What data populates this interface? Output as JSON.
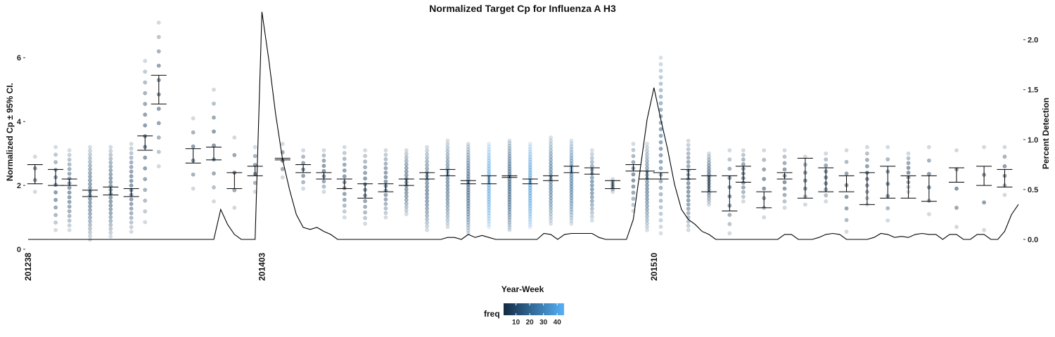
{
  "chart_data": {
    "type": "scatter",
    "title": "Normalized Target Cp for Influenza A H3",
    "xlabel": "Year-Week",
    "ylabel": "Normalized Cp ± 95% CI.",
    "ylabel_right": "Percent Detection",
    "x_tick_labels": [
      "201238",
      "201403",
      "201510"
    ],
    "y_ticks": [
      0,
      2,
      4,
      6
    ],
    "ylim": [
      0,
      7.5
    ],
    "y2_ticks": [
      0.0,
      0.5,
      1.0,
      1.5,
      2.0
    ],
    "y2_tick_labels": [
      "0.0",
      "0.5",
      "1.0",
      "1.5",
      "2.0"
    ],
    "y2lim": [
      0,
      2.3
    ],
    "n_weeks": 145,
    "x_tick_weeks": [
      0,
      34,
      91
    ],
    "grid": false,
    "legend": {
      "title": "freq",
      "placement": "bottom",
      "ticks": [
        10,
        20,
        30,
        40
      ],
      "range": [
        1,
        45
      ],
      "colors": [
        "#132B43",
        "#56B1F7"
      ]
    },
    "series": [
      {
        "type": "errorbar",
        "weeks": [
          1,
          4,
          6,
          9,
          12,
          15,
          17,
          19,
          24,
          27,
          30,
          33,
          37,
          40,
          43,
          46,
          49,
          52,
          55,
          58,
          61,
          64,
          67,
          70,
          73,
          76,
          79,
          82,
          85,
          88,
          90,
          92,
          96,
          99,
          102,
          104,
          107,
          110,
          113,
          116,
          119,
          122,
          125,
          128,
          131,
          135,
          139,
          142
        ],
        "low": [
          2.05,
          2.0,
          2.0,
          1.65,
          1.7,
          1.65,
          3.1,
          4.55,
          2.7,
          2.8,
          1.9,
          2.3,
          2.8,
          2.4,
          2.2,
          1.9,
          1.6,
          1.8,
          2.0,
          2.2,
          2.3,
          2.05,
          2.05,
          2.25,
          2.05,
          2.15,
          2.4,
          2.35,
          1.9,
          2.45,
          2.2,
          2.2,
          2.2,
          1.8,
          1.2,
          2.1,
          1.3,
          2.2,
          1.6,
          1.8,
          1.8,
          1.4,
          1.6,
          1.6,
          1.5,
          2.1,
          2.0,
          1.95
        ],
        "high": [
          2.65,
          2.5,
          2.2,
          1.85,
          1.95,
          1.9,
          3.55,
          5.45,
          3.15,
          3.2,
          2.4,
          2.6,
          2.85,
          2.65,
          2.4,
          2.2,
          2.05,
          2.05,
          2.2,
          2.4,
          2.5,
          2.15,
          2.3,
          2.3,
          2.2,
          2.3,
          2.6,
          2.55,
          2.15,
          2.65,
          2.45,
          2.4,
          2.5,
          2.3,
          2.3,
          2.6,
          1.8,
          2.4,
          2.85,
          2.55,
          2.3,
          2.4,
          2.6,
          2.3,
          2.3,
          2.55,
          2.6,
          2.5
        ]
      },
      {
        "type": "points",
        "weeks": [
          1,
          4,
          6,
          9,
          12,
          15,
          17,
          19,
          24,
          27,
          30,
          33,
          37,
          40,
          43,
          46,
          49,
          52,
          55,
          58,
          61,
          64,
          67,
          70,
          73,
          76,
          79,
          82,
          85,
          88,
          90,
          92,
          96,
          99,
          102,
          104,
          107,
          110,
          113,
          116,
          119,
          122,
          125,
          128,
          131,
          135,
          139,
          142
        ],
        "min": [
          1.8,
          0.6,
          0.6,
          0.3,
          0.4,
          0.55,
          0.85,
          2.6,
          1.9,
          1.5,
          1.3,
          1.8,
          2.25,
          1.9,
          1.8,
          1.0,
          0.8,
          1.0,
          1.1,
          0.6,
          0.7,
          0.5,
          0.7,
          0.6,
          0.7,
          0.8,
          0.8,
          0.9,
          1.8,
          1.2,
          0.6,
          0.5,
          0.6,
          1.4,
          0.5,
          1.5,
          1.0,
          1.3,
          1.4,
          1.5,
          0.55,
          1.4,
          0.9,
          1.8,
          1.1,
          0.7,
          0.6,
          1.7
        ],
        "max": [
          2.9,
          3.2,
          3.1,
          3.2,
          3.2,
          3.3,
          5.9,
          7.1,
          4.1,
          5.0,
          3.5,
          3.2,
          3.3,
          3.1,
          3.1,
          3.2,
          3.1,
          3.1,
          3.1,
          3.2,
          3.4,
          3.3,
          3.3,
          3.4,
          3.3,
          3.5,
          3.4,
          3.1,
          2.2,
          3.3,
          3.3,
          6.0,
          3.4,
          3.0,
          3.1,
          3.1,
          3.1,
          3.1,
          2.9,
          3.0,
          3.1,
          3.2,
          3.2,
          3.0,
          3.2,
          3.1,
          3.2,
          3.2
        ],
        "n": [
          4,
          12,
          18,
          26,
          24,
          20,
          16,
          11,
          6,
          9,
          5,
          6,
          5,
          7,
          9,
          13,
          14,
          16,
          19,
          24,
          26,
          34,
          31,
          36,
          33,
          28,
          30,
          19,
          6,
          12,
          26,
          28,
          22,
          18,
          10,
          12,
          8,
          10,
          7,
          9,
          8,
          10,
          7,
          9,
          6,
          5,
          4,
          6
        ],
        "freq": [
          6,
          8,
          10,
          12,
          8,
          8,
          6,
          6,
          6,
          6,
          4,
          8,
          7,
          6,
          6,
          8,
          7,
          8,
          9,
          11,
          14,
          14,
          40,
          14,
          38,
          18,
          22,
          15,
          12,
          8,
          14,
          17,
          8,
          9,
          8,
          6,
          6,
          6,
          5,
          6,
          5,
          6,
          5,
          6,
          5,
          4,
          5,
          6
        ]
      },
      {
        "type": "line",
        "axis": "right",
        "values": [
          0.0,
          0.0,
          0.0,
          0.0,
          0.0,
          0.0,
          0.0,
          0.0,
          0.0,
          0.0,
          0.0,
          0.0,
          0.0,
          0.0,
          0.0,
          0.0,
          0.0,
          0.0,
          0.0,
          0.0,
          0.0,
          0.0,
          0.0,
          0.0,
          0.0,
          0.0,
          0.0,
          0.0,
          0.3,
          0.15,
          0.05,
          0.0,
          0.0,
          0.0,
          2.28,
          1.8,
          1.25,
          0.8,
          0.5,
          0.25,
          0.12,
          0.1,
          0.12,
          0.08,
          0.05,
          0.0,
          0.0,
          0.0,
          0.0,
          0.0,
          0.0,
          0.0,
          0.0,
          0.0,
          0.0,
          0.0,
          0.0,
          0.0,
          0.0,
          0.0,
          0.0,
          0.02,
          0.02,
          0.0,
          0.05,
          0.02,
          0.04,
          0.02,
          0.0,
          0.0,
          0.0,
          0.0,
          0.0,
          0.0,
          0.0,
          0.06,
          0.05,
          0.0,
          0.05,
          0.06,
          0.06,
          0.06,
          0.06,
          0.02,
          0.0,
          0.0,
          0.0,
          0.0,
          0.2,
          0.7,
          1.2,
          1.52,
          1.2,
          0.9,
          0.55,
          0.3,
          0.2,
          0.15,
          0.08,
          0.05,
          0.0,
          0.0,
          0.0,
          0.0,
          0.0,
          0.0,
          0.0,
          0.0,
          0.0,
          0.0,
          0.05,
          0.05,
          0.0,
          0.0,
          0.0,
          0.02,
          0.05,
          0.06,
          0.05,
          0.0,
          0.0,
          0.0,
          0.0,
          0.02,
          0.06,
          0.05,
          0.02,
          0.03,
          0.02,
          0.05,
          0.06,
          0.05,
          0.05,
          0.0,
          0.05,
          0.05,
          0.0,
          0.0,
          0.05,
          0.05,
          0.0,
          0.0,
          0.08,
          0.25,
          0.35
        ]
      }
    ]
  }
}
